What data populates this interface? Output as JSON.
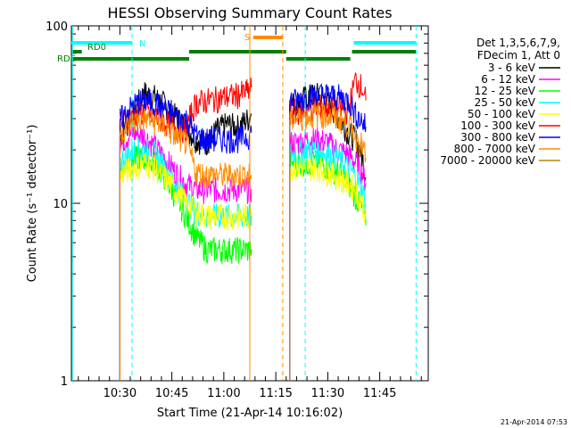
{
  "chart_data": {
    "type": "line",
    "title": "HESSI Observing Summary Count Rates",
    "xlabel": "Start Time (21-Apr-14 10:16:02)",
    "ylabel": "Count Rate (s⁻¹ detector⁻¹)",
    "yscale": "log",
    "ylim": [
      1,
      100
    ],
    "xlim_minutes_after_start": [
      0,
      103
    ],
    "x_ticks": [
      "10:30",
      "10:45",
      "11:00",
      "11:15",
      "11:30",
      "11:45"
    ],
    "y_ticks": [
      "1",
      "10",
      "100"
    ],
    "legend_header": [
      "Det 1,3,5,6,7,9,",
      "FDecim 1, Att 0"
    ],
    "legend_position": "right",
    "series": [
      {
        "name": "3 - 6 keV",
        "color": "#000000",
        "x": [
          14,
          15,
          18,
          21,
          24,
          27,
          30,
          33,
          36,
          39,
          42,
          45,
          48,
          51,
          52,
          63,
          65,
          68,
          71,
          74,
          77,
          80,
          82,
          84,
          85
        ],
        "values": [
          24,
          25,
          33,
          42,
          40,
          36,
          31,
          27,
          23,
          22,
          26,
          28,
          27,
          30,
          32,
          36,
          37,
          40,
          41,
          37,
          31,
          25,
          23,
          18,
          14
        ]
      },
      {
        "name": "6 - 12 keV",
        "color": "#ff00ff",
        "x": [
          14,
          15,
          18,
          21,
          24,
          27,
          30,
          33,
          36,
          39,
          42,
          45,
          48,
          51,
          52,
          63,
          65,
          68,
          71,
          74,
          77,
          80,
          82,
          84,
          85
        ],
        "values": [
          22,
          23,
          25,
          24,
          21,
          18,
          15,
          13,
          12,
          12,
          12,
          12,
          12,
          12,
          12,
          22,
          22,
          23,
          23,
          22,
          20,
          19,
          17,
          15,
          13
        ]
      },
      {
        "name": "12 - 25 keV",
        "color": "#00ff00",
        "x": [
          14,
          15,
          18,
          21,
          24,
          27,
          30,
          33,
          36,
          39,
          42,
          45,
          48,
          51,
          52,
          63,
          65,
          68,
          71,
          74,
          77,
          80,
          82,
          84,
          85
        ],
        "values": [
          15,
          16,
          18,
          18,
          17,
          14,
          11,
          8.5,
          6.5,
          5.5,
          5.5,
          5.5,
          5.5,
          5.5,
          5.5,
          17,
          17,
          17,
          17,
          16,
          15,
          13,
          11,
          9,
          7.5
        ]
      },
      {
        "name": "25 - 50 keV",
        "color": "#00ffff",
        "x": [
          14,
          15,
          18,
          21,
          24,
          27,
          30,
          33,
          36,
          39,
          42,
          45,
          48,
          51,
          52,
          63,
          65,
          68,
          71,
          74,
          77,
          80,
          82,
          84,
          85
        ],
        "values": [
          17,
          18,
          20,
          20,
          19,
          16,
          13,
          10.5,
          9,
          8.5,
          8.5,
          8.5,
          8.5,
          8.5,
          8.5,
          19,
          19,
          20,
          20,
          19,
          18,
          16,
          14,
          12,
          10
        ]
      },
      {
        "name": "50 - 100 keV",
        "color": "#ffff00",
        "x": [
          14,
          15,
          18,
          21,
          24,
          27,
          30,
          33,
          36,
          39,
          42,
          45,
          48,
          51,
          52,
          63,
          65,
          68,
          71,
          74,
          77,
          80,
          82,
          84,
          85
        ],
        "values": [
          14,
          15,
          16,
          17,
          16,
          14,
          12,
          10,
          9,
          8.5,
          8.5,
          8.5,
          8.5,
          8.5,
          8.5,
          16,
          16,
          16,
          16,
          15,
          14,
          13,
          12,
          10,
          9
        ]
      },
      {
        "name": "100 - 300 keV",
        "color": "#ff0000",
        "x": [
          14,
          15,
          18,
          21,
          24,
          27,
          30,
          33,
          36,
          39,
          42,
          45,
          48,
          51,
          52,
          63,
          65,
          68,
          71,
          74,
          77,
          80,
          82,
          84,
          85
        ],
        "values": [
          28,
          29,
          32,
          33,
          31,
          29,
          27,
          26,
          37,
          38,
          39,
          40,
          41,
          43,
          45,
          33,
          33,
          34,
          35,
          35,
          34,
          33,
          50,
          45,
          38
        ]
      },
      {
        "name": "300 - 800 keV",
        "color": "#0000ff",
        "x": [
          14,
          15,
          18,
          21,
          24,
          27,
          30,
          33,
          36,
          39,
          42,
          45,
          48,
          51,
          52,
          63,
          65,
          68,
          71,
          74,
          77,
          80,
          82,
          84,
          85
        ],
        "values": [
          30,
          31,
          36,
          38,
          37,
          34,
          31,
          30,
          24,
          23,
          23,
          23,
          23,
          24,
          25,
          38,
          38,
          40,
          41,
          41,
          40,
          38,
          32,
          29,
          27
        ]
      },
      {
        "name": "800 - 7000 keV",
        "color": "#ff8c00",
        "x": [
          14,
          15,
          18,
          21,
          24,
          27,
          30,
          33,
          36,
          39,
          42,
          45,
          48,
          51,
          52,
          63,
          65,
          68,
          71,
          74,
          77,
          80,
          82,
          84,
          85
        ],
        "values": [
          25,
          26,
          29,
          30,
          29,
          27,
          24,
          22,
          15,
          14.5,
          14.5,
          14.5,
          14.5,
          14.5,
          14.5,
          30,
          30,
          31,
          32,
          31,
          30,
          28,
          24,
          21,
          18
        ]
      },
      {
        "name": "7000 - 20000 keV",
        "color": "#b8860b",
        "x": [],
        "values": []
      }
    ],
    "markers": {
      "vertical_lines": [
        {
          "x": 17.5,
          "color": "#00ffff",
          "style": "dashed"
        },
        {
          "x": 67.5,
          "color": "#00ffff",
          "style": "dashed"
        },
        {
          "x": 99.5,
          "color": "#00ffff",
          "style": "dashed"
        },
        {
          "x": 51.5,
          "color": "#ff8c00",
          "style": "solid"
        },
        {
          "x": 61,
          "color": "#ff8c00",
          "style": "dashed"
        }
      ],
      "flag_bars": [
        {
          "label": "N",
          "color": "#00ffff",
          "segments": [
            [
              0,
              17.5
            ],
            [
              81.5,
              99.5
            ]
          ]
        },
        {
          "label": "S",
          "color": "#ff8c00",
          "segments": [
            [
              52.5,
              61
            ]
          ]
        },
        {
          "label": "RD0",
          "color": "#008000",
          "segments": [
            [
              0,
              3
            ],
            [
              34,
              62
            ],
            [
              81,
              99.5
            ]
          ]
        },
        {
          "label": "RDS",
          "color": "#008000",
          "segments": [
            [
              0,
              34
            ],
            [
              62,
              80.5
            ]
          ]
        }
      ]
    }
  },
  "footer": {
    "timestamp": "21-Apr-2014 07:53"
  }
}
